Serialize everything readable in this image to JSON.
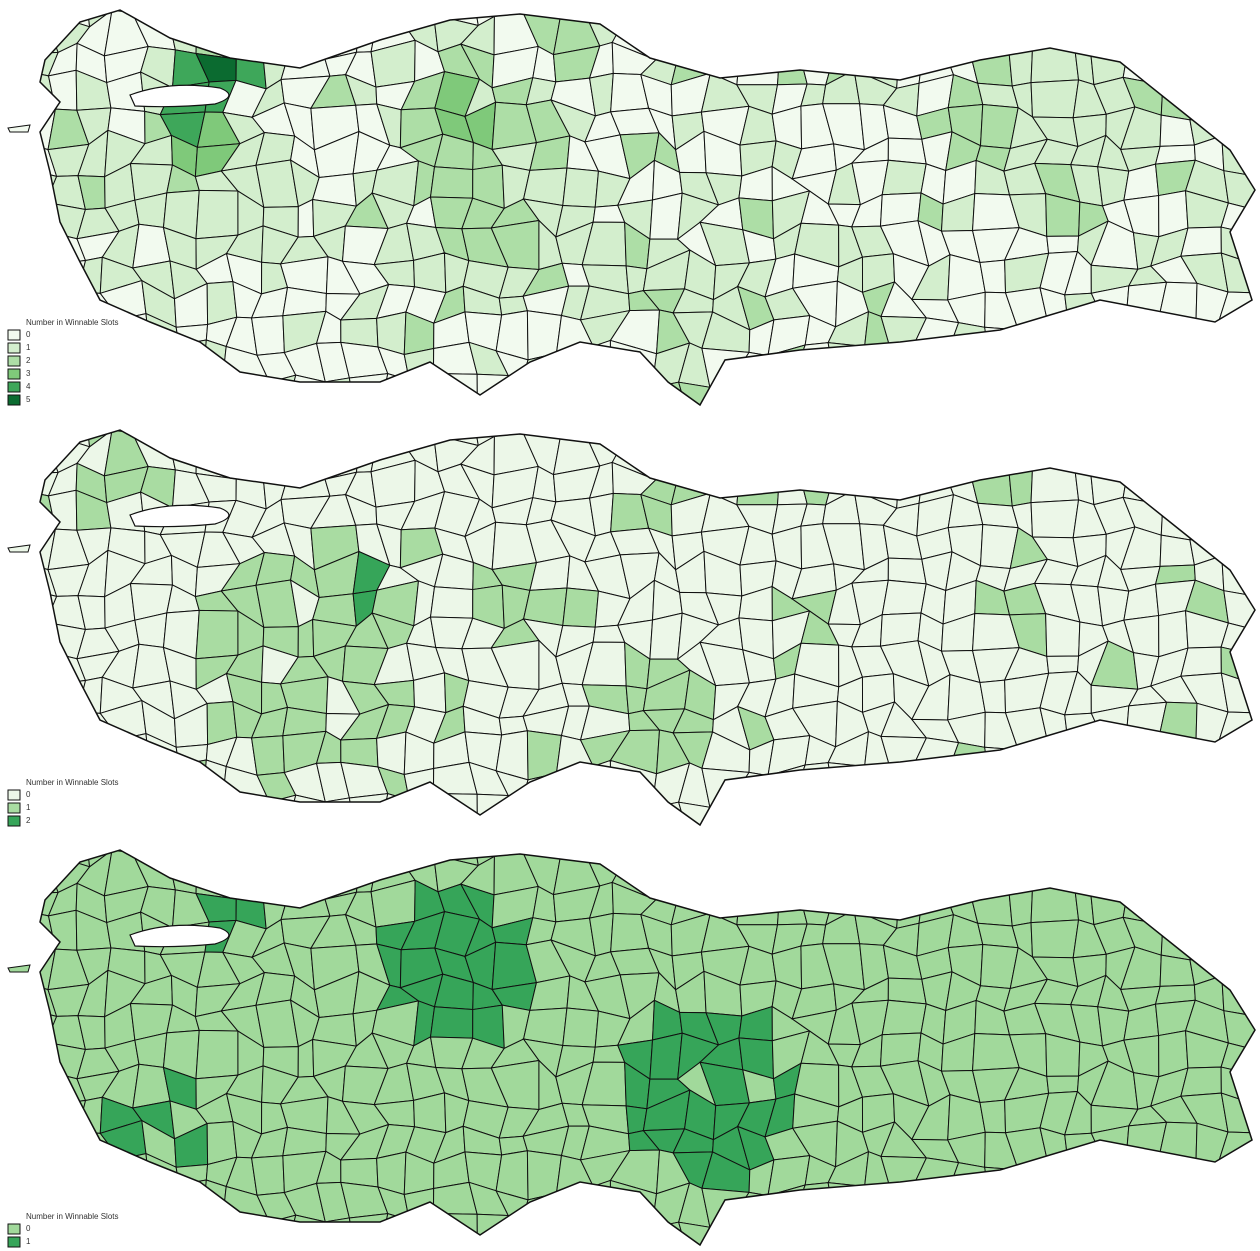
{
  "maps": [
    {
      "legend": {
        "title": "Number in Winnable Slots",
        "items": [
          {
            "label": "0",
            "color": "#f2faef"
          },
          {
            "label": "1",
            "color": "#d3eecd"
          },
          {
            "label": "2",
            "color": "#addea6"
          },
          {
            "label": "3",
            "color": "#7fc97a"
          },
          {
            "label": "4",
            "color": "#3ea75a"
          },
          {
            "label": "5",
            "color": "#0b6b30"
          }
        ]
      }
    },
    {
      "legend": {
        "title": "Number in Winnable Slots",
        "items": [
          {
            "label": "0",
            "color": "#ecf7e8"
          },
          {
            "label": "1",
            "color": "#a9dca2"
          },
          {
            "label": "2",
            "color": "#36a559"
          }
        ]
      }
    },
    {
      "legend": {
        "title": "Number in Winnable Slots",
        "items": [
          {
            "label": "0",
            "color": "#a1d99b"
          },
          {
            "label": "1",
            "color": "#36a559"
          }
        ]
      }
    }
  ]
}
